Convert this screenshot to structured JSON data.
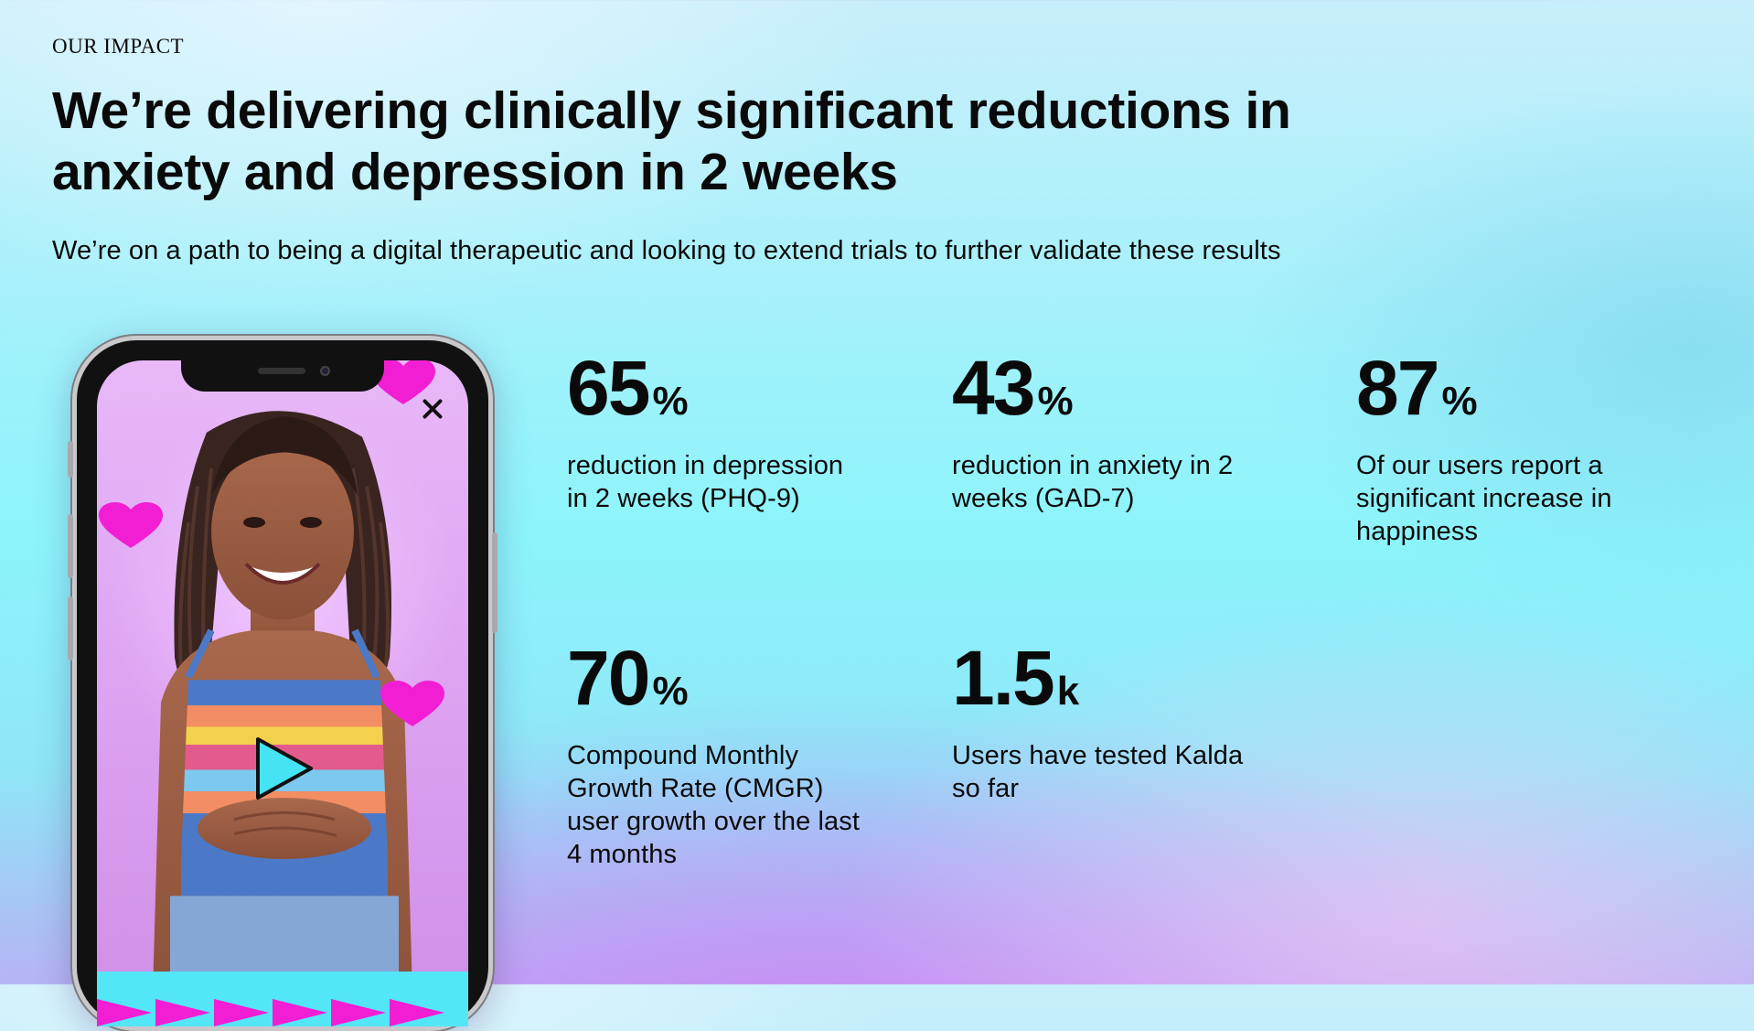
{
  "header": {
    "eyebrow": "OUR IMPACT",
    "title": "We’re delivering clinically significant reductions in anxiety and depression in 2 weeks",
    "subtitle": "We’re on a path to being a digital therapeutic and looking to extend trials to further validate these results"
  },
  "stats": [
    {
      "value": "65",
      "unit": "%",
      "description": "reduction in depression in 2 weeks (PHQ-9)"
    },
    {
      "value": "43",
      "unit": "%",
      "description": "reduction in anxiety in 2 weeks (GAD-7)"
    },
    {
      "value": "87",
      "unit": "%",
      "description": "Of our users report a significant increase in happiness"
    },
    {
      "value": "70",
      "unit": "%",
      "description": "Compound Monthly Growth Rate (CMGR) user growth over the last 4 months"
    },
    {
      "value": "1.5",
      "unit": "k",
      "description": "Users have tested Kalda so far"
    }
  ],
  "phone": {
    "icons": [
      "close-icon",
      "play-icon",
      "heart-icon"
    ],
    "colors": {
      "heart": "#f21ed3",
      "play": "#45e3f3",
      "banner": "#52e6f7",
      "arrows": "#f21ed3"
    }
  }
}
